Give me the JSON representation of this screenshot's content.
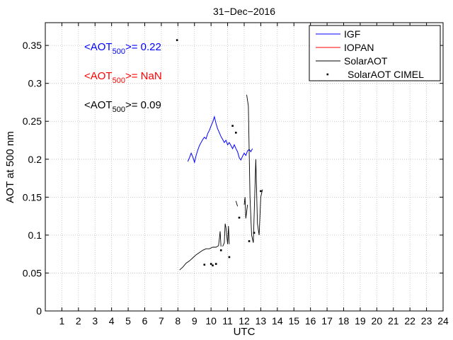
{
  "chart_data": {
    "type": "line",
    "title": "31−Dec−2016",
    "xlabel": "UTC",
    "ylabel": "AOT at 500 nm",
    "xlim": [
      0,
      24
    ],
    "ylim": [
      0,
      0.38
    ],
    "xticks": [
      "1",
      "2",
      "3",
      "4",
      "5",
      "6",
      "7",
      "8",
      "9",
      "10",
      "11",
      "12",
      "13",
      "14",
      "15",
      "16",
      "17",
      "18",
      "19",
      "20",
      "21",
      "22",
      "23",
      "24"
    ],
    "yticks": [
      "0",
      "0.05",
      "0.1",
      "0.15",
      "0.2",
      "0.25",
      "0.3",
      "0.35"
    ],
    "grid": true,
    "legend_placement": "top-right",
    "annotations": [
      {
        "prefix": "<AOT",
        "sub": "500",
        "suffix": ">= 0.22",
        "color": "#0000ff"
      },
      {
        "prefix": "<AOT",
        "sub": "500",
        "suffix": ">=  NaN",
        "color": "#ff0000"
      },
      {
        "prefix": "<AOT",
        "sub": "500",
        "suffix": ">= 0.09",
        "color": "#000000"
      }
    ],
    "series": [
      {
        "name": "IGF",
        "style": "line",
        "color": "#0000ff",
        "x": [
          8.6,
          8.7,
          8.8,
          8.9,
          9.0,
          9.1,
          9.2,
          9.3,
          9.4,
          9.5,
          9.6,
          9.7,
          9.8,
          9.9,
          10.0,
          10.1,
          10.2,
          10.3,
          10.4,
          10.5,
          10.6,
          10.7,
          10.8,
          10.9,
          11.0,
          11.1,
          11.2,
          11.3,
          11.4,
          11.5,
          11.6,
          11.7,
          11.8,
          11.9,
          12.0,
          12.1,
          12.2,
          12.3,
          12.4,
          12.5
        ],
        "y": [
          0.197,
          0.202,
          0.208,
          0.203,
          0.196,
          0.205,
          0.212,
          0.218,
          0.222,
          0.226,
          0.229,
          0.227,
          0.234,
          0.238,
          0.244,
          0.249,
          0.256,
          0.247,
          0.24,
          0.235,
          0.23,
          0.226,
          0.222,
          0.225,
          0.219,
          0.222,
          0.218,
          0.214,
          0.219,
          0.214,
          0.21,
          0.202,
          0.199,
          0.204,
          0.208,
          0.205,
          0.211,
          0.213,
          0.21,
          0.214
        ]
      },
      {
        "name": "IOPAN",
        "style": "line",
        "color": "#ff0000",
        "x": [],
        "y": []
      },
      {
        "name": "SolarAOT",
        "style": "line",
        "color": "#000000",
        "segments": [
          {
            "x": [
              8.1,
              8.3,
              8.5,
              8.7,
              8.9,
              9.1,
              9.3,
              9.5,
              9.7,
              9.9,
              10.1,
              10.3,
              10.45,
              10.5,
              10.55,
              10.6
            ],
            "y": [
              0.054,
              0.058,
              0.063,
              0.066,
              0.07,
              0.074,
              0.077,
              0.08,
              0.082,
              0.082,
              0.084,
              0.084,
              0.086,
              0.095,
              0.105,
              0.085
            ]
          },
          {
            "x": [
              10.7,
              10.8,
              10.85,
              10.9,
              11.0,
              11.05,
              11.1
            ],
            "y": [
              0.085,
              0.09,
              0.115,
              0.11,
              0.088,
              0.112,
              0.088
            ]
          },
          {
            "x": [
              11.5,
              11.6
            ],
            "y": [
              0.145,
              0.138
            ]
          },
          {
            "x": [
              12.0,
              12.05,
              12.1,
              12.2
            ],
            "y": [
              0.14,
              0.15,
              0.122,
              0.14
            ]
          },
          {
            "x": [
              12.15,
              12.25,
              12.35,
              12.45,
              12.55,
              12.7,
              12.8,
              12.9,
              13.0,
              13.1
            ],
            "y": [
              0.285,
              0.27,
              0.15,
              0.1,
              0.09,
              0.2,
              0.115,
              0.1,
              0.15,
              0.16
            ]
          }
        ]
      },
      {
        "name": "SolarAOT CIMEL",
        "style": "points",
        "color": "#000000",
        "x": [
          7.95,
          9.6,
          10.0,
          10.1,
          10.3,
          10.6,
          11.1,
          11.3,
          11.5,
          11.7,
          12.3,
          12.6,
          13.0
        ],
        "y": [
          0.357,
          0.061,
          0.062,
          0.06,
          0.062,
          0.08,
          0.071,
          0.244,
          0.235,
          0.123,
          0.092,
          0.103,
          0.158
        ]
      }
    ]
  }
}
